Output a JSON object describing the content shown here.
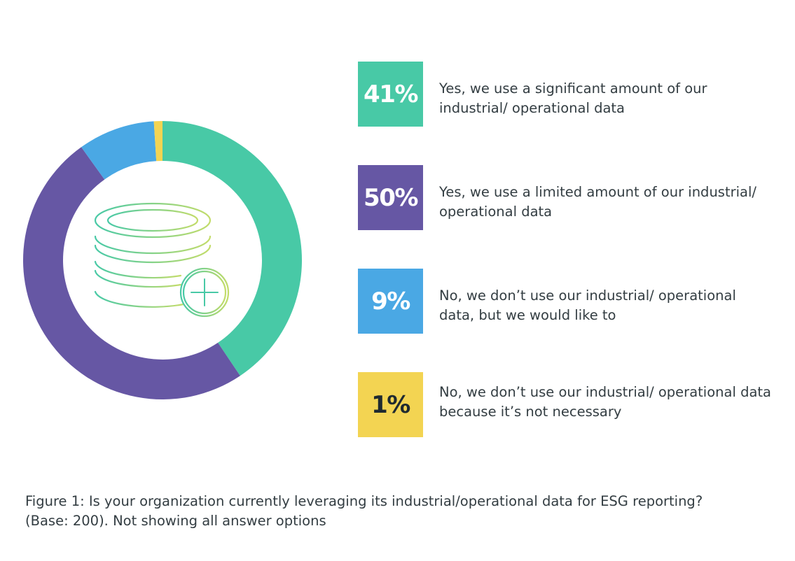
{
  "chart_data": {
    "type": "pie",
    "style": "donut",
    "categories": [
      "Yes, we use a significant amount of our industrial/ operational data",
      "Yes, we use a limited amount of our industrial/ operational data",
      "No, we don’t use our industrial/ operational data, but we would like to",
      "No, we don’t use our industrial/ operational data because it’s not necessary"
    ],
    "values": [
      41,
      50,
      9,
      1
    ],
    "labels": [
      "41%",
      "50%",
      "9%",
      "1%"
    ],
    "colors": [
      "#48c9a6",
      "#6657a4",
      "#4aa8e4",
      "#f3d452"
    ],
    "label_colors": [
      "#ffffff",
      "#ffffff",
      "#ffffff",
      "#1f2a30"
    ],
    "center_icon": "database-add-icon",
    "caption": "Figure 1: Is your organization currently leveraging its industrial/operational data for ESG reporting? (Base: 200). Not showing all answer options"
  }
}
